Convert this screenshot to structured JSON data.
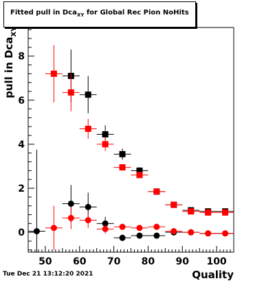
{
  "title": {
    "prefix": "Fitted pull in Dca",
    "subscript": "XY",
    "suffix": " for Global Rec Pion NoHits"
  },
  "timestamp": "Tue Dec 21 13:12:20 2021",
  "chart_data": {
    "type": "scatter",
    "xlabel": "Quality",
    "ylabel_main": "pull in Dca",
    "ylabel_sub": "XY",
    "xlim": [
      45,
      105
    ],
    "ylim": [
      -0.9,
      9.3
    ],
    "x_ticks": [
      50,
      60,
      70,
      80,
      90,
      100
    ],
    "y_ticks": [
      0,
      2,
      4,
      6,
      8
    ],
    "grid": false,
    "series": [
      {
        "marker": "square",
        "color": "#000000",
        "x_err": 2.5,
        "points": [
          {
            "x": 57.5,
            "y": 7.1,
            "err": 1.2
          },
          {
            "x": 62.5,
            "y": 6.25,
            "err": 0.85
          },
          {
            "x": 67.5,
            "y": 4.45,
            "err": 0.4
          },
          {
            "x": 72.5,
            "y": 3.55,
            "err": 0.25
          },
          {
            "x": 77.5,
            "y": 2.8,
            "err": 0.15
          },
          {
            "x": 82.5,
            "y": 1.85,
            "err": 0.1
          },
          {
            "x": 87.5,
            "y": 1.25,
            "err": 0.08
          },
          {
            "x": 92.5,
            "y": 1.0,
            "err": 0.06
          },
          {
            "x": 97.5,
            "y": 0.95,
            "err": 0.05
          },
          {
            "x": 102.5,
            "y": 0.95,
            "err": 0.05
          }
        ]
      },
      {
        "marker": "square",
        "color": "#ff0000",
        "x_err": 2.5,
        "points": [
          {
            "x": 52.5,
            "y": 7.2,
            "err": 1.3
          },
          {
            "x": 57.5,
            "y": 6.35,
            "err": 0.85
          },
          {
            "x": 62.5,
            "y": 4.7,
            "err": 0.45
          },
          {
            "x": 67.5,
            "y": 4.0,
            "err": 0.3
          },
          {
            "x": 72.5,
            "y": 2.95,
            "err": 0.15
          },
          {
            "x": 77.5,
            "y": 2.6,
            "err": 0.12
          },
          {
            "x": 82.5,
            "y": 1.85,
            "err": 0.08
          },
          {
            "x": 87.5,
            "y": 1.25,
            "err": 0.06
          },
          {
            "x": 92.5,
            "y": 0.95,
            "err": 0.05
          },
          {
            "x": 97.5,
            "y": 0.9,
            "err": 0.04
          },
          {
            "x": 102.5,
            "y": 0.9,
            "err": 0.04
          }
        ]
      },
      {
        "marker": "circle",
        "color": "#000000",
        "x_err": 2.5,
        "points": [
          {
            "x": 47.5,
            "y": 0.05,
            "err": 3.7
          },
          {
            "x": 57.5,
            "y": 1.3,
            "err": 0.85
          },
          {
            "x": 62.5,
            "y": 1.15,
            "err": 0.65
          },
          {
            "x": 67.5,
            "y": 0.4,
            "err": 0.3
          },
          {
            "x": 72.5,
            "y": -0.25,
            "err": 0.15
          },
          {
            "x": 77.5,
            "y": -0.15,
            "err": 0.1
          },
          {
            "x": 82.5,
            "y": -0.15,
            "err": 0.08
          },
          {
            "x": 87.5,
            "y": 0.0,
            "err": 0.06
          },
          {
            "x": 92.5,
            "y": 0.0,
            "err": 0.05
          },
          {
            "x": 97.5,
            "y": -0.05,
            "err": 0.04
          },
          {
            "x": 102.5,
            "y": -0.05,
            "err": 0.04
          }
        ]
      },
      {
        "marker": "circle",
        "color": "#ff0000",
        "x_err": 2.5,
        "points": [
          {
            "x": 52.5,
            "y": 0.2,
            "err": 1.0
          },
          {
            "x": 57.5,
            "y": 0.65,
            "err": 0.5
          },
          {
            "x": 62.5,
            "y": 0.55,
            "err": 0.35
          },
          {
            "x": 67.5,
            "y": 0.15,
            "err": 0.2
          },
          {
            "x": 72.5,
            "y": 0.25,
            "err": 0.12
          },
          {
            "x": 77.5,
            "y": 0.2,
            "err": 0.08
          },
          {
            "x": 82.5,
            "y": 0.25,
            "err": 0.06
          },
          {
            "x": 87.5,
            "y": 0.05,
            "err": 0.05
          },
          {
            "x": 92.5,
            "y": 0.0,
            "err": 0.04
          },
          {
            "x": 97.5,
            "y": -0.05,
            "err": 0.03
          },
          {
            "x": 102.5,
            "y": -0.05,
            "err": 0.03
          }
        ]
      }
    ]
  }
}
